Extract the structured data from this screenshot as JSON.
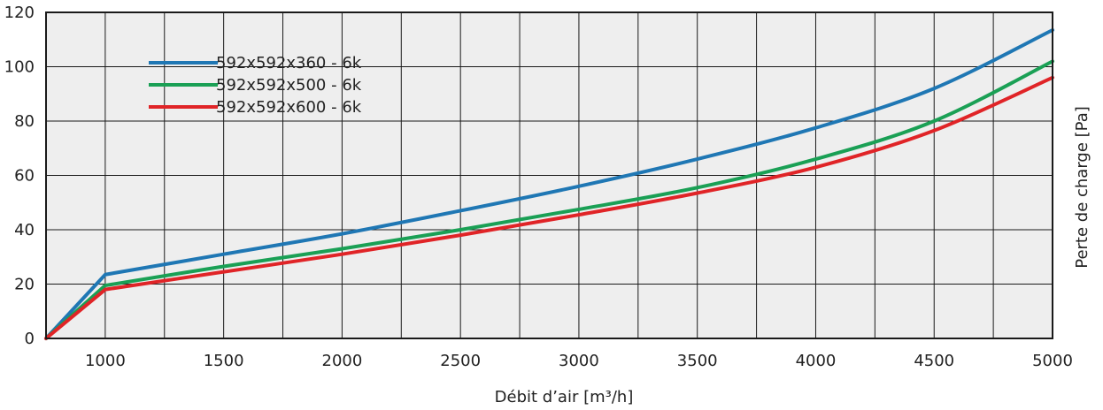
{
  "chart_data": {
    "type": "line",
    "xlabel": "Débit d’air [m³/h]",
    "ylabel": "Perte de charge [Pa]",
    "xlim": [
      750,
      5000
    ],
    "ylim": [
      0,
      120
    ],
    "x_tick_labels": [
      "1000",
      "1500",
      "2000",
      "2500",
      "3000",
      "3500",
      "4000",
      "4500",
      "5000"
    ],
    "x_tick_values": [
      1000,
      1500,
      2000,
      2500,
      3000,
      3500,
      4000,
      4500,
      5000
    ],
    "y_tick_labels": [
      "0",
      "20",
      "40",
      "60",
      "80",
      "100",
      "120"
    ],
    "y_tick_values": [
      0,
      20,
      40,
      60,
      80,
      100,
      120
    ],
    "grid": true,
    "x_grid_step": 250,
    "y_grid_step": 20,
    "plot_background": "#eeeeee",
    "legend_position": "top-left",
    "series": [
      {
        "name": "592x592x360 - 6k",
        "color": "#1f77b4",
        "x": [
          750,
          1000,
          1500,
          2000,
          2500,
          3000,
          3500,
          4000,
          4500,
          5000
        ],
        "y": [
          0,
          23.5,
          31,
          38.5,
          47,
          56,
          66,
          77.5,
          92,
          113.5
        ]
      },
      {
        "name": "592x592x500 - 6k",
        "color": "#1aa055",
        "x": [
          750,
          1000,
          1500,
          2000,
          2500,
          3000,
          3500,
          4000,
          4500,
          5000
        ],
        "y": [
          0,
          19.5,
          26.5,
          33,
          40,
          47.5,
          55.5,
          66,
          80,
          102
        ]
      },
      {
        "name": "592x592x600 - 6k",
        "color": "#e02427",
        "x": [
          750,
          1000,
          1500,
          2000,
          2500,
          3000,
          3500,
          4000,
          4500,
          5000
        ],
        "y": [
          0,
          18,
          24.5,
          31,
          38,
          45.5,
          53.5,
          63,
          76.5,
          96
        ]
      }
    ]
  }
}
